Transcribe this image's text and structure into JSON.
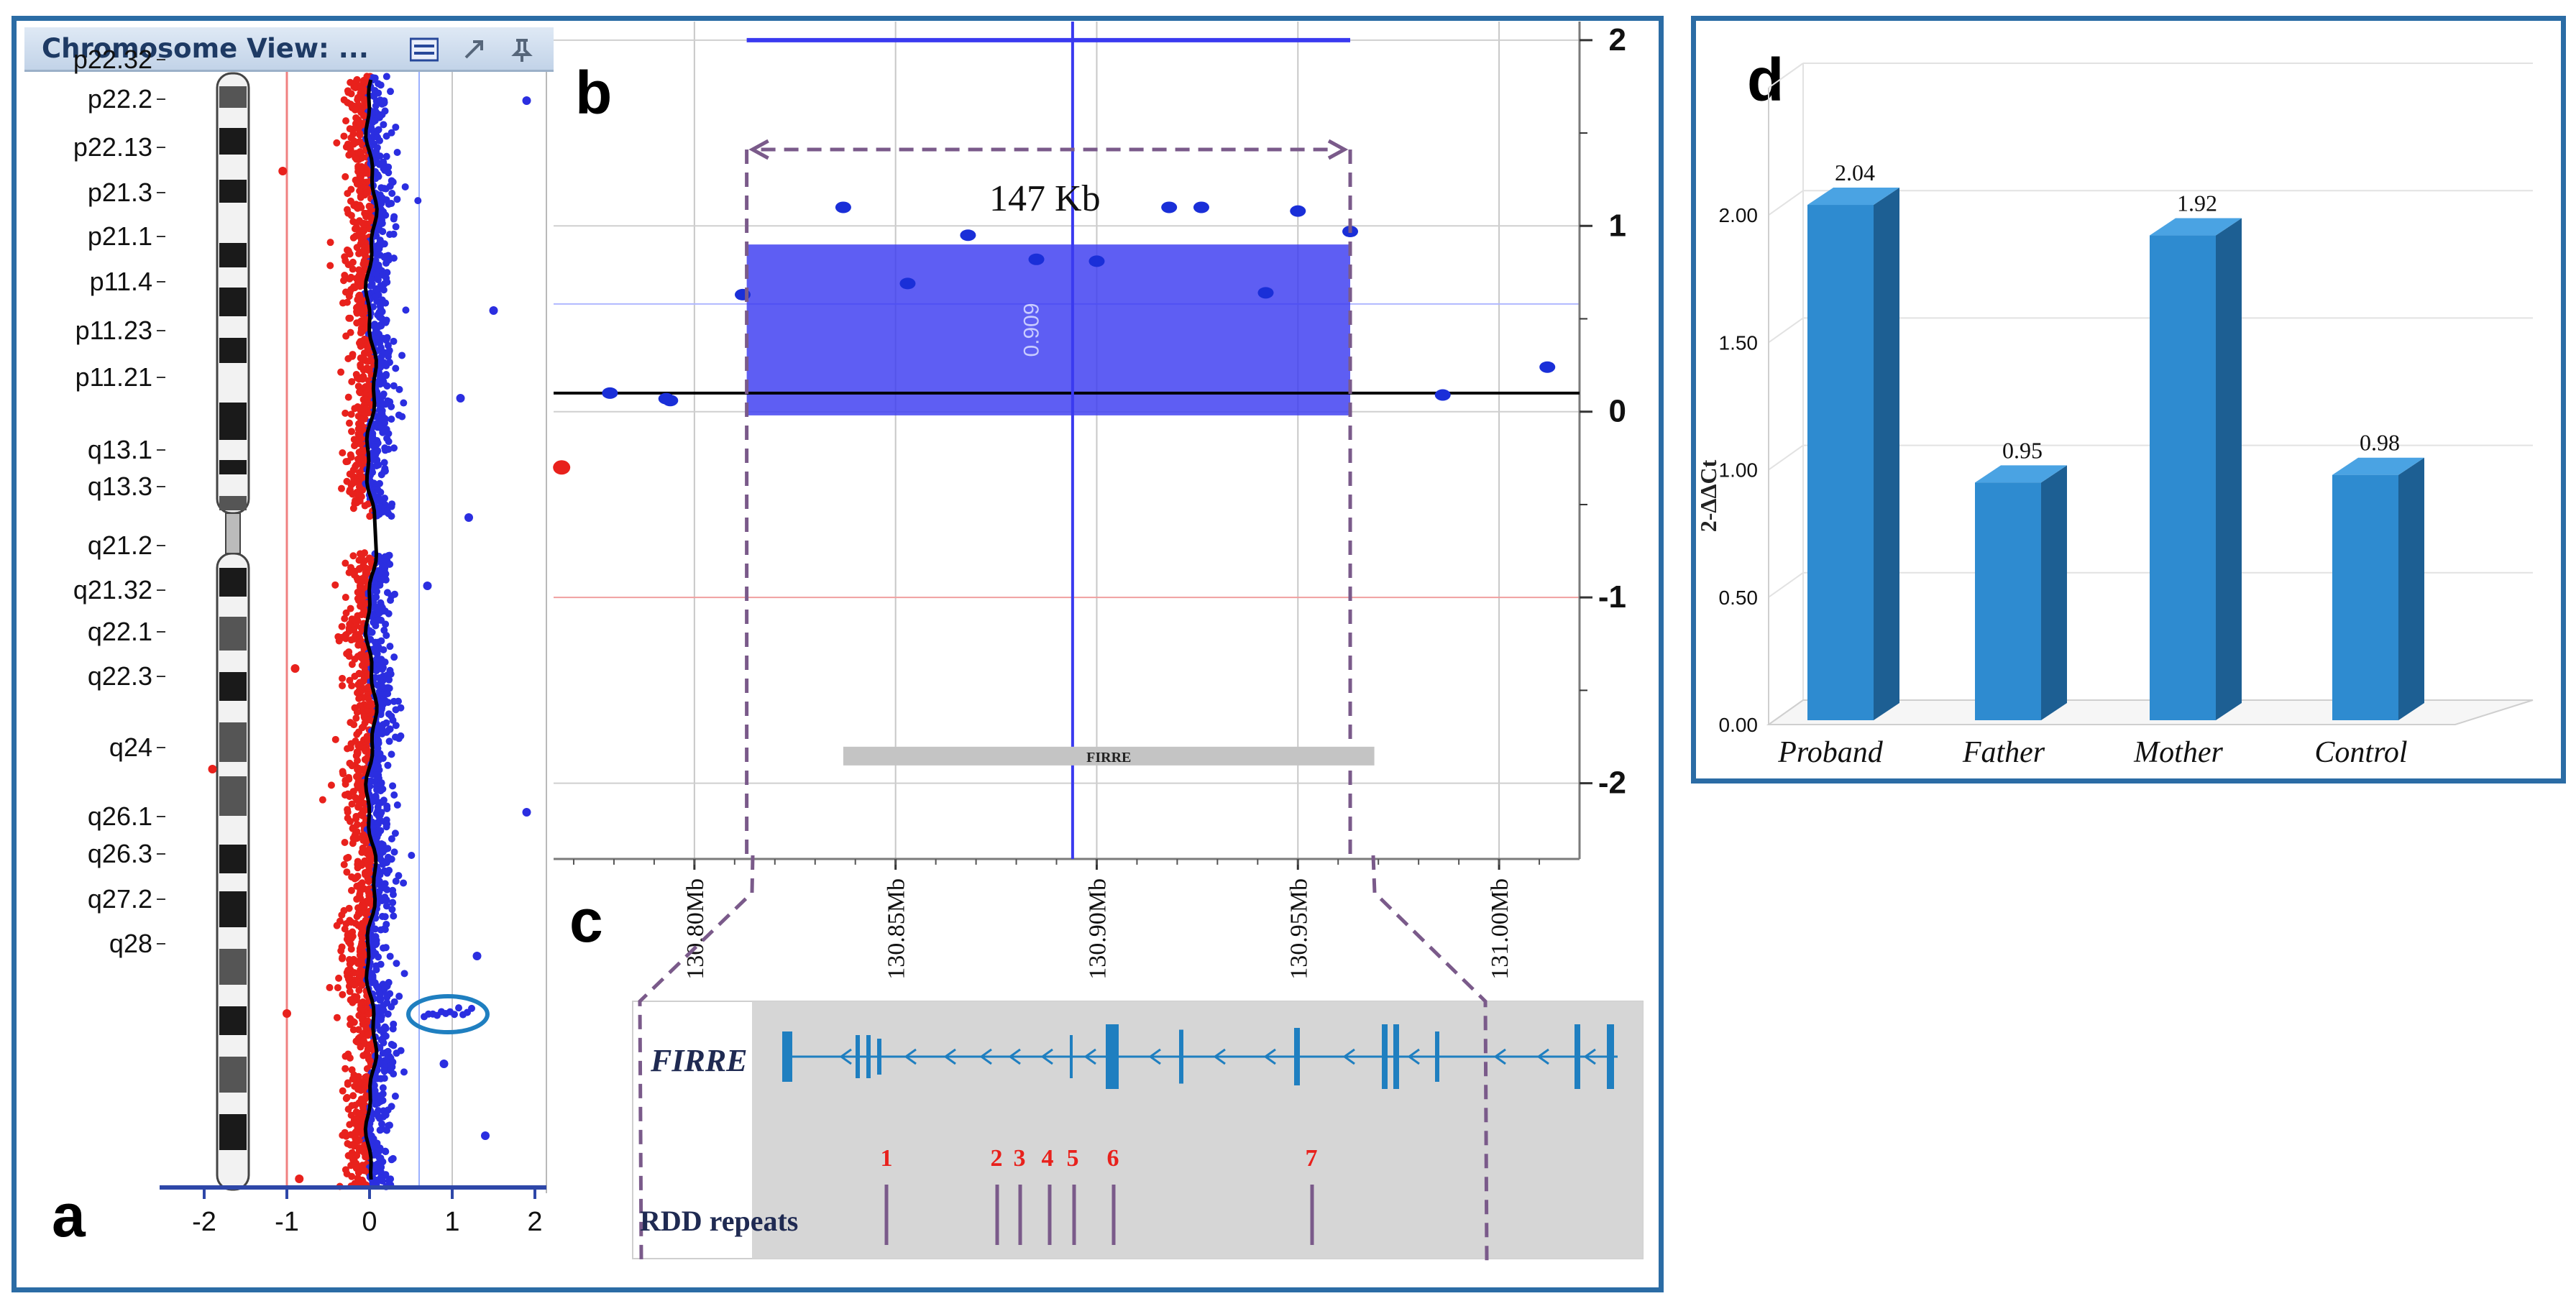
{
  "header": {
    "title": "Chromosome View: ...",
    "icons": [
      "list-icon",
      "resize-icon",
      "pin-icon"
    ]
  },
  "panel_letters": {
    "a": "a",
    "b": "b",
    "c": "c",
    "d": "d"
  },
  "chart_data": [
    {
      "panel": "a",
      "type": "scatter",
      "cytobands": [
        "p22.32",
        "p22.2",
        "p22.13",
        "p21.3",
        "p21.1",
        "p11.4",
        "p11.23",
        "p11.21",
        "q13.1",
        "q13.3",
        "q21.2",
        "q21.32",
        "q22.1",
        "q22.3",
        "q24",
        "q26.1",
        "q26.3",
        "q27.2",
        "q28"
      ],
      "x_ticks": [
        "-2",
        "-1",
        "0",
        "1",
        "2"
      ],
      "xlim": [
        -2,
        2
      ],
      "colors": {
        "loss": "#e8211c",
        "gain": "#2b2ee0",
        "trend": "#000000",
        "highlight": "#1f7fc0"
      }
    },
    {
      "panel": "b",
      "type": "scatter",
      "y_ticks": [
        "2",
        "1",
        "0",
        "-1",
        "-2"
      ],
      "ylim": [
        -2.4,
        2.1
      ],
      "x_ticks": [
        "130.80Mb",
        "130.85Mb",
        "130.90Mb",
        "130.95Mb",
        "131.00Mb"
      ],
      "xlim": [
        130.765,
        131.02
      ],
      "points": [
        [
          130.779,
          0.1
        ],
        [
          130.794,
          0.06
        ],
        [
          130.793,
          0.07
        ],
        [
          130.812,
          0.63
        ],
        [
          130.837,
          1.1
        ],
        [
          130.853,
          0.69
        ],
        [
          130.868,
          0.95
        ],
        [
          130.885,
          0.82
        ],
        [
          130.9,
          0.81
        ],
        [
          130.918,
          1.1
        ],
        [
          130.926,
          1.1
        ],
        [
          130.942,
          0.64
        ],
        [
          130.95,
          1.08
        ],
        [
          130.963,
          0.97
        ],
        [
          130.986,
          0.09
        ],
        [
          131.012,
          0.24
        ]
      ],
      "loss_points": [
        [
          130.767,
          -0.3
        ]
      ],
      "segment": {
        "x": [
          130.813,
          130.963
        ],
        "y": [
          -0.02,
          0.9
        ],
        "label": "0.909"
      },
      "segment_color": "#3a3af0",
      "size_label": "147 Kb",
      "center_x": 130.894,
      "top_bar": [
        130.813,
        130.963,
        2.0
      ],
      "gene_bar": {
        "label": "FIRRE",
        "x": [
          130.837,
          130.969
        ],
        "y": -1.85
      }
    },
    {
      "panel": "c",
      "type": "diagram",
      "gene_label": "FIRRE",
      "repeats_label": "RDD repeats",
      "repeat_numbers": [
        "1",
        "2",
        "3",
        "4",
        "5",
        "6",
        "7"
      ],
      "gene_color": "#1f7fc0",
      "repeat_color": "#7a5a8a",
      "number_color": "#e8211c"
    },
    {
      "panel": "d",
      "type": "bar",
      "categories": [
        "Proband",
        "Father",
        "Mother",
        "Control"
      ],
      "values": [
        2.04,
        0.95,
        1.92,
        0.98
      ],
      "value_labels": [
        "2.04",
        "0.95",
        "1.92",
        "0.98"
      ],
      "ylabel": "2-ΔΔCt",
      "y_ticks": [
        "0.00",
        "0.50",
        "1.00",
        "1.50",
        "2.00"
      ],
      "ylim": [
        0,
        2.5
      ],
      "bar_color": "#2e8bd0"
    }
  ]
}
